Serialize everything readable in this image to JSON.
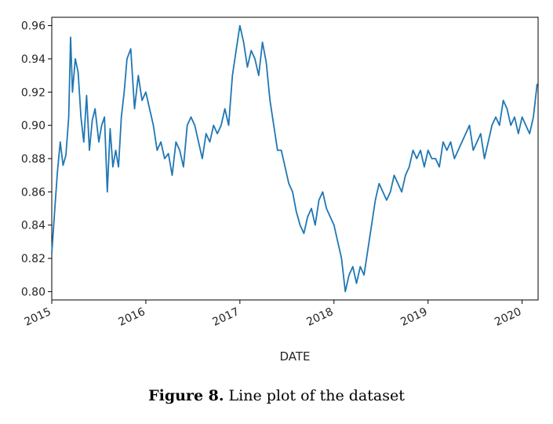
{
  "caption": {
    "label": "Figure 8.",
    "text": "Line plot of the dataset"
  },
  "chart_data": {
    "type": "line",
    "title": "",
    "xlabel": "DATE",
    "ylabel": "",
    "xlim": [
      2015.0,
      2020.17
    ],
    "ylim": [
      0.795,
      0.965
    ],
    "x_ticks": [
      "2015",
      "2016",
      "2017",
      "2018",
      "2019",
      "2020"
    ],
    "y_ticks": [
      "0.80",
      "0.82",
      "0.84",
      "0.86",
      "0.88",
      "0.90",
      "0.92",
      "0.94",
      "0.96"
    ],
    "grid": false,
    "line_color": "#1f77b4",
    "series": [
      {
        "x": [
          2015.0,
          2015.03,
          2015.06,
          2015.09,
          2015.12,
          2015.15,
          2015.18,
          2015.2,
          2015.22,
          2015.25,
          2015.28,
          2015.31,
          2015.34,
          2015.37,
          2015.4,
          2015.43,
          2015.46,
          2015.5,
          2015.53,
          2015.56,
          2015.59,
          2015.62,
          2015.65,
          2015.68,
          2015.71,
          2015.74,
          2015.77,
          2015.8,
          2015.84,
          2015.88,
          2015.92,
          2015.96,
          2016.0,
          2016.04,
          2016.08,
          2016.12,
          2016.16,
          2016.2,
          2016.24,
          2016.28,
          2016.32,
          2016.36,
          2016.4,
          2016.44,
          2016.48,
          2016.52,
          2016.56,
          2016.6,
          2016.64,
          2016.68,
          2016.72,
          2016.76,
          2016.8,
          2016.84,
          2016.88,
          2016.92,
          2016.96,
          2017.0,
          2017.04,
          2017.08,
          2017.12,
          2017.16,
          2017.2,
          2017.24,
          2017.28,
          2017.32,
          2017.36,
          2017.4,
          2017.44,
          2017.48,
          2017.52,
          2017.56,
          2017.6,
          2017.64,
          2017.68,
          2017.72,
          2017.76,
          2017.8,
          2017.84,
          2017.88,
          2017.92,
          2017.96,
          2018.0,
          2018.04,
          2018.08,
          2018.12,
          2018.16,
          2018.2,
          2018.24,
          2018.28,
          2018.32,
          2018.36,
          2018.4,
          2018.44,
          2018.48,
          2018.52,
          2018.56,
          2018.6,
          2018.64,
          2018.68,
          2018.72,
          2018.76,
          2018.8,
          2018.84,
          2018.88,
          2018.92,
          2018.96,
          2019.0,
          2019.04,
          2019.08,
          2019.12,
          2019.16,
          2019.2,
          2019.24,
          2019.28,
          2019.32,
          2019.36,
          2019.4,
          2019.44,
          2019.48,
          2019.52,
          2019.56,
          2019.6,
          2019.64,
          2019.68,
          2019.72,
          2019.76,
          2019.8,
          2019.84,
          2019.88,
          2019.92,
          2019.96,
          2020.0,
          2020.04,
          2020.08,
          2020.12,
          2020.16
        ],
        "values": [
          0.823,
          0.848,
          0.872,
          0.89,
          0.876,
          0.882,
          0.905,
          0.953,
          0.92,
          0.94,
          0.932,
          0.905,
          0.89,
          0.918,
          0.885,
          0.903,
          0.91,
          0.89,
          0.9,
          0.905,
          0.86,
          0.898,
          0.875,
          0.885,
          0.875,
          0.905,
          0.92,
          0.94,
          0.946,
          0.91,
          0.93,
          0.915,
          0.92,
          0.91,
          0.9,
          0.885,
          0.89,
          0.88,
          0.883,
          0.87,
          0.89,
          0.885,
          0.875,
          0.9,
          0.905,
          0.9,
          0.89,
          0.88,
          0.895,
          0.89,
          0.9,
          0.895,
          0.9,
          0.91,
          0.9,
          0.93,
          0.945,
          0.96,
          0.95,
          0.935,
          0.945,
          0.94,
          0.93,
          0.95,
          0.938,
          0.915,
          0.9,
          0.885,
          0.885,
          0.875,
          0.865,
          0.86,
          0.848,
          0.84,
          0.835,
          0.845,
          0.85,
          0.84,
          0.855,
          0.86,
          0.85,
          0.845,
          0.84,
          0.83,
          0.82,
          0.8,
          0.81,
          0.815,
          0.805,
          0.815,
          0.81,
          0.825,
          0.84,
          0.855,
          0.865,
          0.86,
          0.855,
          0.86,
          0.87,
          0.865,
          0.86,
          0.87,
          0.875,
          0.885,
          0.88,
          0.885,
          0.875,
          0.885,
          0.88,
          0.88,
          0.875,
          0.89,
          0.885,
          0.89,
          0.88,
          0.885,
          0.89,
          0.895,
          0.9,
          0.885,
          0.89,
          0.895,
          0.88,
          0.89,
          0.9,
          0.905,
          0.9,
          0.915,
          0.91,
          0.9,
          0.905,
          0.895,
          0.905,
          0.9,
          0.895,
          0.905,
          0.925
        ]
      }
    ]
  }
}
